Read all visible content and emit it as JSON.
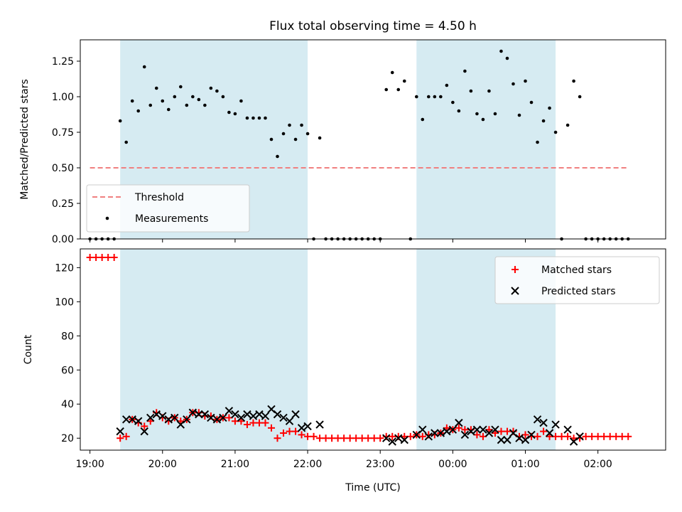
{
  "chart_data": [
    {
      "type": "scatter",
      "title": "Flux total observing time = 4.50 h",
      "xlabel": "",
      "ylabel": "Matched/Predicted stars",
      "xlim": [
        "18:52",
        "02:56"
      ],
      "ylim": [
        0,
        1.4
      ],
      "yticks": [
        "0.00",
        "0.25",
        "0.50",
        "0.75",
        "1.00",
        "1.25"
      ],
      "grid": false,
      "legend_position": "lower-left",
      "highlight_spans": [
        [
          "19:25",
          "22:00"
        ],
        [
          "23:30",
          "01:25"
        ]
      ],
      "threshold": {
        "name": "Threshold",
        "value": 0.5,
        "x_range": [
          "19:00",
          "02:25"
        ],
        "color": "#f08080"
      },
      "series": [
        {
          "name": "Measurements",
          "color": "#000000",
          "points": [
            [
              "19:00",
              0
            ],
            [
              "19:05",
              0
            ],
            [
              "19:10",
              0
            ],
            [
              "19:15",
              0
            ],
            [
              "19:20",
              0
            ],
            [
              "19:25",
              0.83
            ],
            [
              "19:30",
              0.68
            ],
            [
              "19:35",
              0.97
            ],
            [
              "19:40",
              0.9
            ],
            [
              "19:45",
              1.21
            ],
            [
              "19:50",
              0.94
            ],
            [
              "19:55",
              1.06
            ],
            [
              "20:00",
              0.97
            ],
            [
              "20:05",
              0.91
            ],
            [
              "20:10",
              1.0
            ],
            [
              "20:15",
              1.07
            ],
            [
              "20:20",
              0.94
            ],
            [
              "20:25",
              1.0
            ],
            [
              "20:30",
              0.98
            ],
            [
              "20:35",
              0.94
            ],
            [
              "20:40",
              1.06
            ],
            [
              "20:45",
              1.04
            ],
            [
              "20:50",
              1.0
            ],
            [
              "20:55",
              0.89
            ],
            [
              "21:00",
              0.88
            ],
            [
              "21:05",
              0.97
            ],
            [
              "21:10",
              0.85
            ],
            [
              "21:15",
              0.85
            ],
            [
              "21:20",
              0.85
            ],
            [
              "21:25",
              0.85
            ],
            [
              "21:30",
              0.7
            ],
            [
              "21:35",
              0.58
            ],
            [
              "21:40",
              0.74
            ],
            [
              "21:45",
              0.8
            ],
            [
              "21:50",
              0.7
            ],
            [
              "21:55",
              0.8
            ],
            [
              "22:00",
              0.74
            ],
            [
              "22:05",
              0
            ],
            [
              "22:10",
              0.71
            ],
            [
              "22:15",
              0
            ],
            [
              "22:20",
              0
            ],
            [
              "22:25",
              0
            ],
            [
              "22:30",
              0
            ],
            [
              "22:35",
              0
            ],
            [
              "22:40",
              0
            ],
            [
              "22:45",
              0
            ],
            [
              "22:50",
              0
            ],
            [
              "22:55",
              0
            ],
            [
              "23:00",
              0
            ],
            [
              "23:05",
              1.05
            ],
            [
              "23:10",
              1.17
            ],
            [
              "23:15",
              1.05
            ],
            [
              "23:20",
              1.11
            ],
            [
              "23:25",
              0
            ],
            [
              "23:30",
              1.0
            ],
            [
              "23:35",
              0.84
            ],
            [
              "23:40",
              1.0
            ],
            [
              "23:45",
              1.0
            ],
            [
              "23:50",
              1.0
            ],
            [
              "23:55",
              1.08
            ],
            [
              "00:00",
              0.96
            ],
            [
              "00:05",
              0.9
            ],
            [
              "00:10",
              1.18
            ],
            [
              "00:15",
              1.04
            ],
            [
              "00:20",
              0.88
            ],
            [
              "00:25",
              0.84
            ],
            [
              "00:30",
              1.04
            ],
            [
              "00:35",
              0.88
            ],
            [
              "00:40",
              1.32
            ],
            [
              "00:45",
              1.27
            ],
            [
              "00:50",
              1.09
            ],
            [
              "00:55",
              0.87
            ],
            [
              "01:00",
              1.11
            ],
            [
              "01:05",
              0.96
            ],
            [
              "01:10",
              0.68
            ],
            [
              "01:15",
              0.83
            ],
            [
              "01:20",
              0.92
            ],
            [
              "01:25",
              0.75
            ],
            [
              "01:30",
              0
            ],
            [
              "01:35",
              0.8
            ],
            [
              "01:40",
              1.11
            ],
            [
              "01:45",
              1.0
            ],
            [
              "01:50",
              0
            ],
            [
              "01:55",
              0
            ],
            [
              "02:00",
              0
            ],
            [
              "02:05",
              0
            ],
            [
              "02:10",
              0
            ],
            [
              "02:15",
              0
            ],
            [
              "02:20",
              0
            ],
            [
              "02:25",
              0
            ]
          ]
        }
      ]
    },
    {
      "type": "scatter",
      "title": "",
      "xlabel": "Time (UTC)",
      "ylabel": "Count",
      "xlim": [
        "18:52",
        "02:56"
      ],
      "ylim": [
        13,
        131
      ],
      "yticks": [
        "20",
        "40",
        "60",
        "80",
        "100",
        "120"
      ],
      "xticks": [
        "19:00",
        "20:00",
        "21:00",
        "22:00",
        "23:00",
        "00:00",
        "01:00",
        "02:00"
      ],
      "grid": false,
      "legend_position": "top-right",
      "highlight_spans": [
        [
          "19:25",
          "22:00"
        ],
        [
          "23:30",
          "01:25"
        ]
      ],
      "series": [
        {
          "name": "Matched stars",
          "marker": "plus",
          "color": "#ff0000",
          "points": [
            [
              "19:00",
              126
            ],
            [
              "19:05",
              126
            ],
            [
              "19:10",
              126
            ],
            [
              "19:15",
              126
            ],
            [
              "19:20",
              126
            ],
            [
              "19:25",
              20
            ],
            [
              "19:30",
              21
            ],
            [
              "19:35",
              31
            ],
            [
              "19:40",
              29
            ],
            [
              "19:45",
              27
            ],
            [
              "19:50",
              30
            ],
            [
              "19:55",
              35
            ],
            [
              "20:00",
              32
            ],
            [
              "20:05",
              30
            ],
            [
              "20:10",
              32
            ],
            [
              "20:15",
              30
            ],
            [
              "20:20",
              31
            ],
            [
              "20:25",
              35
            ],
            [
              "20:30",
              35
            ],
            [
              "20:35",
              33
            ],
            [
              "20:40",
              33
            ],
            [
              "20:45",
              31
            ],
            [
              "20:50",
              32
            ],
            [
              "20:55",
              32
            ],
            [
              "21:00",
              30
            ],
            [
              "21:05",
              30
            ],
            [
              "21:10",
              28
            ],
            [
              "21:15",
              29
            ],
            [
              "21:20",
              29
            ],
            [
              "21:25",
              29
            ],
            [
              "21:30",
              26
            ],
            [
              "21:35",
              20
            ],
            [
              "21:40",
              23
            ],
            [
              "21:45",
              24
            ],
            [
              "21:50",
              24
            ],
            [
              "21:55",
              22
            ],
            [
              "22:00",
              21
            ],
            [
              "22:05",
              21
            ],
            [
              "22:10",
              20
            ],
            [
              "22:15",
              20
            ],
            [
              "22:20",
              20
            ],
            [
              "22:25",
              20
            ],
            [
              "22:30",
              20
            ],
            [
              "22:35",
              20
            ],
            [
              "22:40",
              20
            ],
            [
              "22:45",
              20
            ],
            [
              "22:50",
              20
            ],
            [
              "22:55",
              20
            ],
            [
              "23:00",
              20
            ],
            [
              "23:05",
              21
            ],
            [
              "23:10",
              21
            ],
            [
              "23:15",
              21
            ],
            [
              "23:20",
              21
            ],
            [
              "23:25",
              21
            ],
            [
              "23:30",
              22
            ],
            [
              "23:35",
              21
            ],
            [
              "23:40",
              22
            ],
            [
              "23:45",
              22
            ],
            [
              "23:50",
              23
            ],
            [
              "23:55",
              26
            ],
            [
              "00:00",
              25
            ],
            [
              "00:05",
              26
            ],
            [
              "00:10",
              25
            ],
            [
              "00:15",
              25
            ],
            [
              "00:20",
              22
            ],
            [
              "00:25",
              21
            ],
            [
              "00:30",
              25
            ],
            [
              "00:35",
              23
            ],
            [
              "00:40",
              24
            ],
            [
              "00:45",
              24
            ],
            [
              "00:50",
              24
            ],
            [
              "00:55",
              21
            ],
            [
              "01:00",
              22
            ],
            [
              "01:05",
              21
            ],
            [
              "01:10",
              21
            ],
            [
              "01:15",
              24
            ],
            [
              "01:20",
              21
            ],
            [
              "01:25",
              21
            ],
            [
              "01:30",
              21
            ],
            [
              "01:35",
              21
            ],
            [
              "01:40",
              20
            ],
            [
              "01:45",
              20
            ],
            [
              "01:50",
              21
            ],
            [
              "01:55",
              21
            ],
            [
              "02:00",
              21
            ],
            [
              "02:05",
              21
            ],
            [
              "02:10",
              21
            ],
            [
              "02:15",
              21
            ],
            [
              "02:20",
              21
            ],
            [
              "02:25",
              21
            ]
          ]
        },
        {
          "name": "Predicted stars",
          "marker": "x",
          "color": "#000000",
          "points": [
            [
              "19:25",
              24
            ],
            [
              "19:30",
              31
            ],
            [
              "19:35",
              31
            ],
            [
              "19:40",
              30
            ],
            [
              "19:45",
              24
            ],
            [
              "19:50",
              32
            ],
            [
              "19:55",
              34
            ],
            [
              "20:00",
              33
            ],
            [
              "20:05",
              31
            ],
            [
              "20:10",
              32
            ],
            [
              "20:15",
              28
            ],
            [
              "20:20",
              31
            ],
            [
              "20:25",
              35
            ],
            [
              "20:30",
              34
            ],
            [
              "20:35",
              34
            ],
            [
              "20:40",
              32
            ],
            [
              "20:45",
              31
            ],
            [
              "20:50",
              32
            ],
            [
              "20:55",
              36
            ],
            [
              "21:00",
              34
            ],
            [
              "21:05",
              32
            ],
            [
              "21:10",
              34
            ],
            [
              "21:15",
              33
            ],
            [
              "21:20",
              34
            ],
            [
              "21:25",
              33
            ],
            [
              "21:30",
              37
            ],
            [
              "21:35",
              34
            ],
            [
              "21:40",
              32
            ],
            [
              "21:45",
              30
            ],
            [
              "21:50",
              34
            ],
            [
              "21:55",
              26
            ],
            [
              "22:00",
              27
            ],
            [
              "22:10",
              28
            ],
            [
              "23:05",
              20
            ],
            [
              "23:10",
              18
            ],
            [
              "23:15",
              20
            ],
            [
              "23:20",
              19
            ],
            [
              "23:30",
              22
            ],
            [
              "23:35",
              25
            ],
            [
              "23:40",
              21
            ],
            [
              "23:45",
              23
            ],
            [
              "23:50",
              23
            ],
            [
              "23:55",
              24
            ],
            [
              "00:00",
              25
            ],
            [
              "00:05",
              29
            ],
            [
              "00:10",
              22
            ],
            [
              "00:15",
              24
            ],
            [
              "00:20",
              25
            ],
            [
              "00:25",
              25
            ],
            [
              "00:30",
              23
            ],
            [
              "00:35",
              25
            ],
            [
              "00:40",
              19
            ],
            [
              "00:45",
              19
            ],
            [
              "00:50",
              23
            ],
            [
              "00:55",
              20
            ],
            [
              "01:00",
              19
            ],
            [
              "01:05",
              22
            ],
            [
              "01:10",
              31
            ],
            [
              "01:15",
              29
            ],
            [
              "01:20",
              23
            ],
            [
              "01:25",
              28
            ],
            [
              "01:35",
              25
            ],
            [
              "01:40",
              18
            ],
            [
              "01:45",
              21
            ]
          ]
        }
      ]
    }
  ]
}
